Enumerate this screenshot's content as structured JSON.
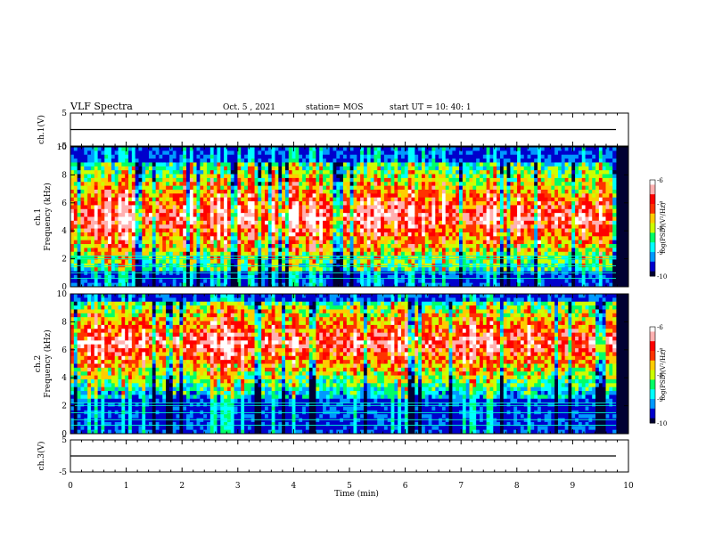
{
  "header": {
    "title": "VLF Spectra",
    "date": "Oct. 5  , 2021",
    "station": "station= MOS",
    "start_ut": "start  UT  =   10: 40: 1"
  },
  "chart_data": [
    {
      "type": "line",
      "panel": "ch1-voltage",
      "ylabel": "ch.1(V)",
      "ylim": [
        -5,
        5
      ],
      "yticks": [
        "5",
        "-5"
      ],
      "level": 0
    },
    {
      "type": "heatmap",
      "panel": "ch1-spectrogram",
      "ylabel": "ch.1\nFrequency (kHz)",
      "ylim": [
        0,
        10
      ],
      "yticks": [
        "0",
        "2",
        "4",
        "6",
        "8",
        "10"
      ],
      "colorbar": {
        "label": "log(PSD)(V²/Hz)",
        "range": [
          -10,
          -6
        ],
        "ticks": [
          "-6",
          "-7",
          "-8",
          "-9",
          "-10"
        ]
      },
      "band_khz": [
        1,
        9
      ],
      "peak_khz": 5
    },
    {
      "type": "heatmap",
      "panel": "ch2-spectrogram",
      "ylabel": "ch.2\nFrequency (kHz)",
      "ylim": [
        0,
        10
      ],
      "yticks": [
        "0",
        "2",
        "4",
        "6",
        "8",
        "10"
      ],
      "colorbar": {
        "label": "log(PSD)(V²/Hz)",
        "range": [
          -10,
          -6
        ],
        "ticks": [
          "-6",
          "-7",
          "-8",
          "-9",
          "-10"
        ]
      },
      "band_khz": [
        2.5,
        9.5
      ],
      "peak_khz": 6.5
    },
    {
      "type": "line",
      "panel": "ch3-voltage",
      "ylabel": "ch.3(V)",
      "ylim": [
        -5,
        5
      ],
      "yticks": [
        "5",
        "-5"
      ],
      "level": 0
    }
  ],
  "x_axis": {
    "label": "Time (min)",
    "range": [
      0,
      10
    ],
    "ticks": [
      "0",
      "1",
      "2",
      "3",
      "4",
      "5",
      "6",
      "7",
      "8",
      "9",
      "10"
    ]
  },
  "colors": {
    "colormap": [
      "#000033",
      "#0000cc",
      "#0099ff",
      "#00ffff",
      "#00ff66",
      "#ccff00",
      "#ffcc00",
      "#ff3300",
      "#ff0000",
      "#ffb0b0",
      "#ffffff"
    ]
  }
}
